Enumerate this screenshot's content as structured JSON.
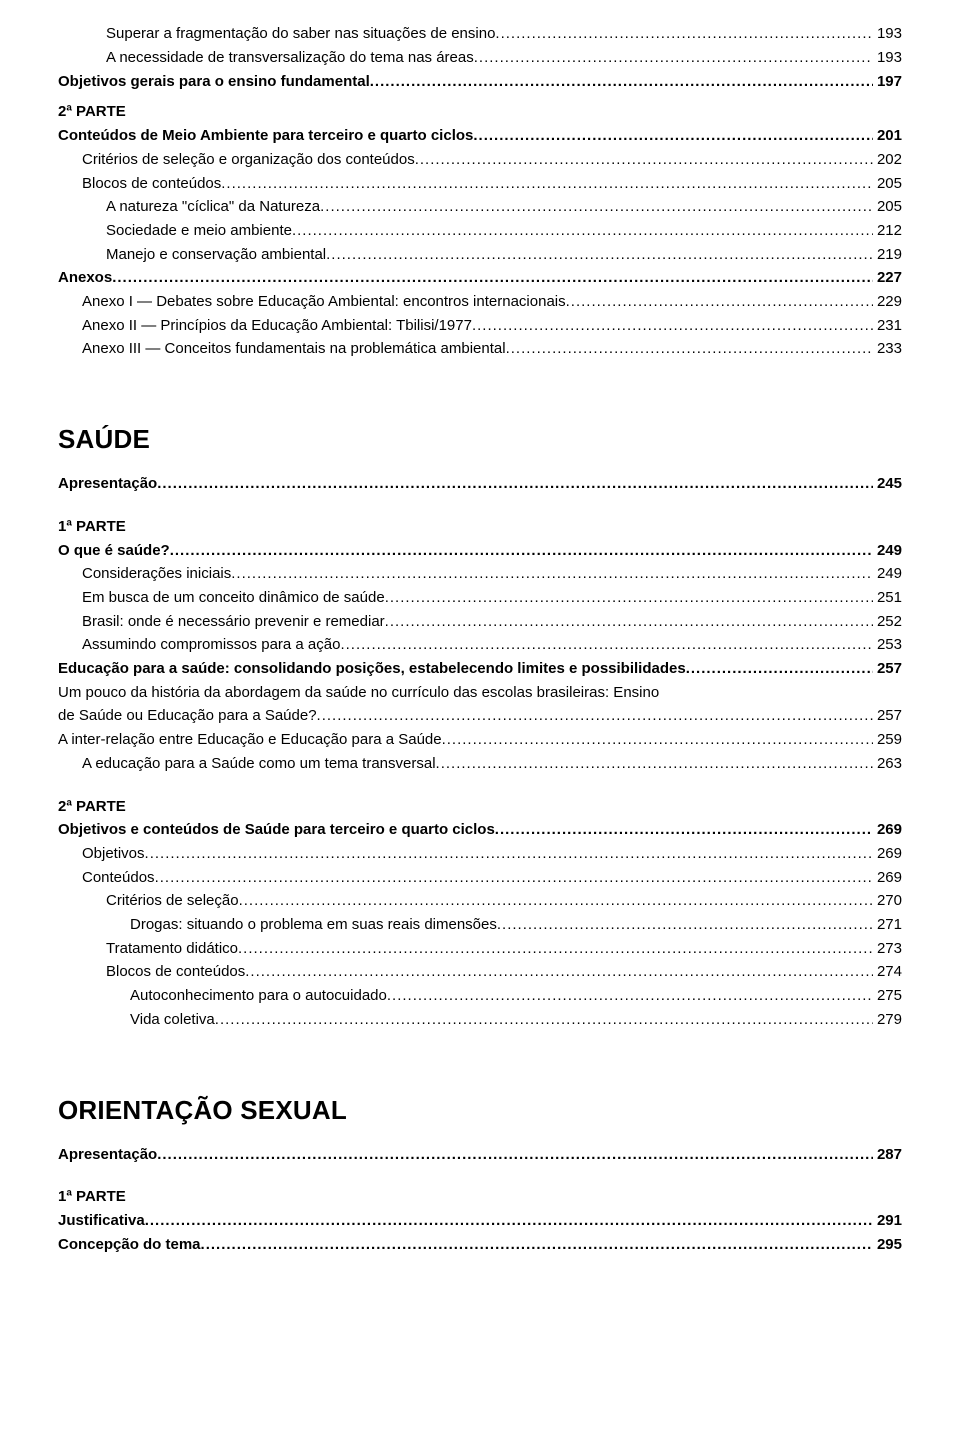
{
  "toc_block1": [
    {
      "indent": 2,
      "bold": false,
      "text": "Superar a fragmentação do saber nas situações de ensino",
      "page": "193"
    },
    {
      "indent": 2,
      "bold": false,
      "text": "A necessidade de transversalização do tema nas áreas",
      "page": "193"
    },
    {
      "indent": 0,
      "bold": true,
      "text": "Objetivos gerais para o ensino fundamental",
      "page": "197"
    }
  ],
  "toc_block2_header": {
    "text": "2ª PARTE"
  },
  "toc_block2": [
    {
      "indent": 0,
      "bold": true,
      "text": "Conteúdos de Meio Ambiente para terceiro e quarto ciclos",
      "page": "201"
    },
    {
      "indent": 1,
      "bold": false,
      "text": "Critérios de seleção e organização dos conteúdos",
      "page": "202"
    },
    {
      "indent": 1,
      "bold": false,
      "text": "Blocos de conteúdos",
      "page": "205"
    },
    {
      "indent": 2,
      "bold": false,
      "text": "A natureza \"cíclica\" da Natureza",
      "page": "205"
    },
    {
      "indent": 2,
      "bold": false,
      "text": "Sociedade e meio ambiente",
      "page": "212"
    },
    {
      "indent": 2,
      "bold": false,
      "text": "Manejo e conservação ambiental",
      "page": "219"
    },
    {
      "indent": 0,
      "bold": true,
      "text": "Anexos",
      "page": "227"
    },
    {
      "indent": 1,
      "bold": false,
      "text": "Anexo I — Debates sobre Educação Ambiental: encontros internacionais",
      "page": "229"
    },
    {
      "indent": 1,
      "bold": false,
      "text": "Anexo II — Princípios da Educação Ambiental: Tbilisi/1977",
      "page": "231"
    },
    {
      "indent": 1,
      "bold": false,
      "text": "Anexo III — Conceitos fundamentais na problemática ambiental",
      "page": "233"
    }
  ],
  "saude_heading": "SAÚDE",
  "toc_block3": [
    {
      "indent": 0,
      "bold": true,
      "text": "Apresentação",
      "page": "245"
    }
  ],
  "toc_block4_header": {
    "text": "1ª PARTE"
  },
  "toc_block4": [
    {
      "indent": 0,
      "bold": true,
      "text": "O que é saúde?",
      "page": "249"
    },
    {
      "indent": 1,
      "bold": false,
      "text": "Considerações iniciais",
      "page": "249"
    },
    {
      "indent": 1,
      "bold": false,
      "text": "Em busca de um conceito dinâmico de saúde",
      "page": "251"
    },
    {
      "indent": 1,
      "bold": false,
      "text": "Brasil: onde é necessário prevenir e remediar",
      "page": "252"
    },
    {
      "indent": 1,
      "bold": false,
      "text": "Assumindo compromissos para a ação",
      "page": "253"
    },
    {
      "indent": 0,
      "bold": true,
      "text": "Educação para a saúde: consolidando posições, estabelecendo limites e possibilidades",
      "page": "257"
    }
  ],
  "toc_block4_multiline": {
    "indent": 0,
    "bold": false,
    "lines": [
      "Um pouco da história da abordagem da saúde no currículo das escolas brasileiras: Ensino",
      "de Saúde ou Educação para a Saúde?"
    ],
    "page": "257"
  },
  "toc_block4b": [
    {
      "indent": 0,
      "bold": false,
      "text": "A inter-relação entre Educação e Educação para a Saúde",
      "page": "259"
    },
    {
      "indent": 1,
      "bold": false,
      "text": "A educação para a Saúde como um tema transversal",
      "page": "263"
    }
  ],
  "toc_block5_header": {
    "text": "2ª PARTE"
  },
  "toc_block5": [
    {
      "indent": 0,
      "bold": true,
      "text": "Objetivos e conteúdos de Saúde para terceiro e quarto ciclos",
      "page": "269"
    },
    {
      "indent": 1,
      "bold": false,
      "text": "Objetivos",
      "page": "269"
    },
    {
      "indent": 1,
      "bold": false,
      "text": "Conteúdos",
      "page": "269"
    },
    {
      "indent": 2,
      "bold": false,
      "text": "Critérios de seleção",
      "page": "270"
    },
    {
      "indent": 3,
      "bold": false,
      "text": "Drogas: situando o problema em suas reais dimensões",
      "page": "271"
    },
    {
      "indent": 2,
      "bold": false,
      "text": "Tratamento didático",
      "page": "273"
    },
    {
      "indent": 2,
      "bold": false,
      "text": "Blocos de conteúdos",
      "page": "274"
    },
    {
      "indent": 3,
      "bold": false,
      "text": "Autoconhecimento para o autocuidado",
      "page": "275"
    },
    {
      "indent": 3,
      "bold": false,
      "text": "Vida coletiva",
      "page": "279"
    }
  ],
  "orient_heading": "ORIENTAÇÃO SEXUAL",
  "toc_block6": [
    {
      "indent": 0,
      "bold": true,
      "text": "Apresentação",
      "page": "287"
    }
  ],
  "toc_block7_header": {
    "text": "1ª PARTE"
  },
  "toc_block7": [
    {
      "indent": 0,
      "bold": true,
      "text": "Justificativa",
      "page": "291"
    },
    {
      "indent": 0,
      "bold": true,
      "text": "Concepção do tema",
      "page": "295"
    }
  ]
}
